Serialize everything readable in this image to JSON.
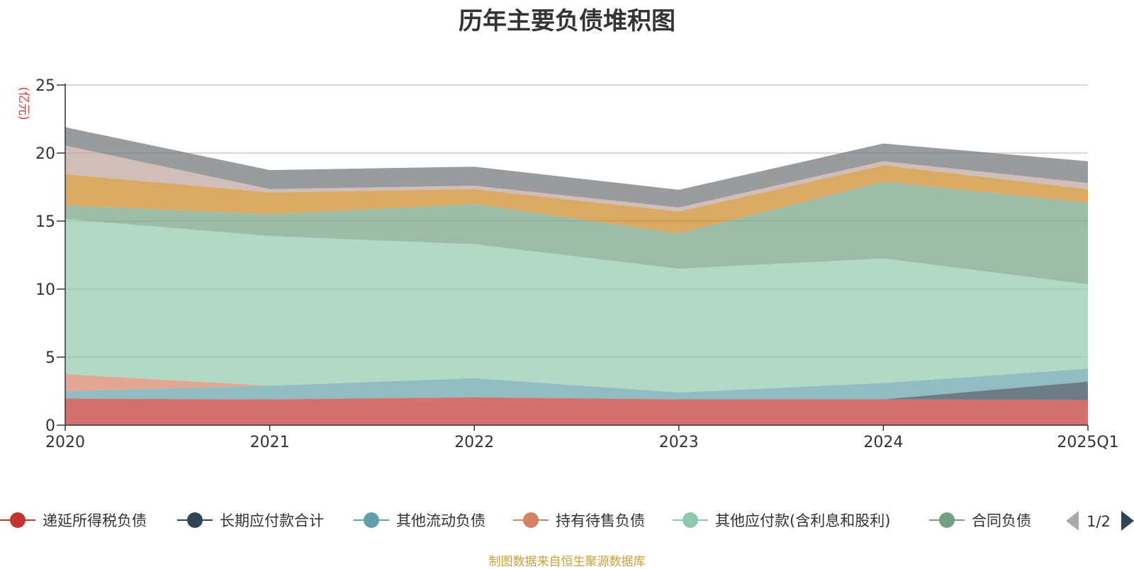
{
  "chart_data": {
    "type": "area",
    "stacked": true,
    "title": "历年主要负债堆积图",
    "ylabel": "(亿元)",
    "categories": [
      "2020",
      "2021",
      "2022",
      "2023",
      "2024",
      "2025Q1"
    ],
    "ylim": [
      0,
      25
    ],
    "yticks": [
      "0",
      "5",
      "10",
      "15",
      "20",
      "25"
    ],
    "grid": true,
    "series": [
      {
        "name": "递延所得税负债",
        "color": "#c23531",
        "values": [
          1.95,
          1.9,
          2.05,
          1.9,
          1.9,
          1.85
        ]
      },
      {
        "name": "长期应付款合计",
        "color": "#2f4554",
        "values": [
          0,
          0,
          0,
          0,
          0,
          1.35
        ]
      },
      {
        "name": "其他流动负债",
        "color": "#61a0a8",
        "values": [
          0.55,
          1.0,
          1.4,
          0.5,
          1.2,
          0.95
        ]
      },
      {
        "name": "持有待售负债",
        "color": "#d48265",
        "values": [
          1.25,
          0,
          0,
          0,
          0,
          0
        ]
      },
      {
        "name": "其他应付款(含利息和股利)",
        "color": "#91c7ae",
        "values": [
          11.4,
          11.0,
          9.85,
          9.1,
          9.15,
          6.2
        ]
      },
      {
        "name": "合同负债",
        "color": "#749f83",
        "values": [
          1.0,
          1.6,
          2.95,
          2.6,
          5.65,
          6.0
        ]
      },
      {
        "name": "",
        "color": "#ca8622",
        "values": [
          2.3,
          1.6,
          1.1,
          1.6,
          1.2,
          1.0
        ]
      },
      {
        "name": "",
        "color": "#bda29a",
        "values": [
          2.1,
          0.25,
          0.25,
          0.3,
          0.3,
          0.45
        ]
      },
      {
        "name": "",
        "color": "#6e7074",
        "values": [
          1.35,
          1.4,
          1.4,
          1.3,
          1.3,
          1.6
        ]
      }
    ],
    "legend": {
      "position": "bottom",
      "page": "1/2"
    }
  },
  "source_note": "制图数据来自恒生聚源数据库"
}
